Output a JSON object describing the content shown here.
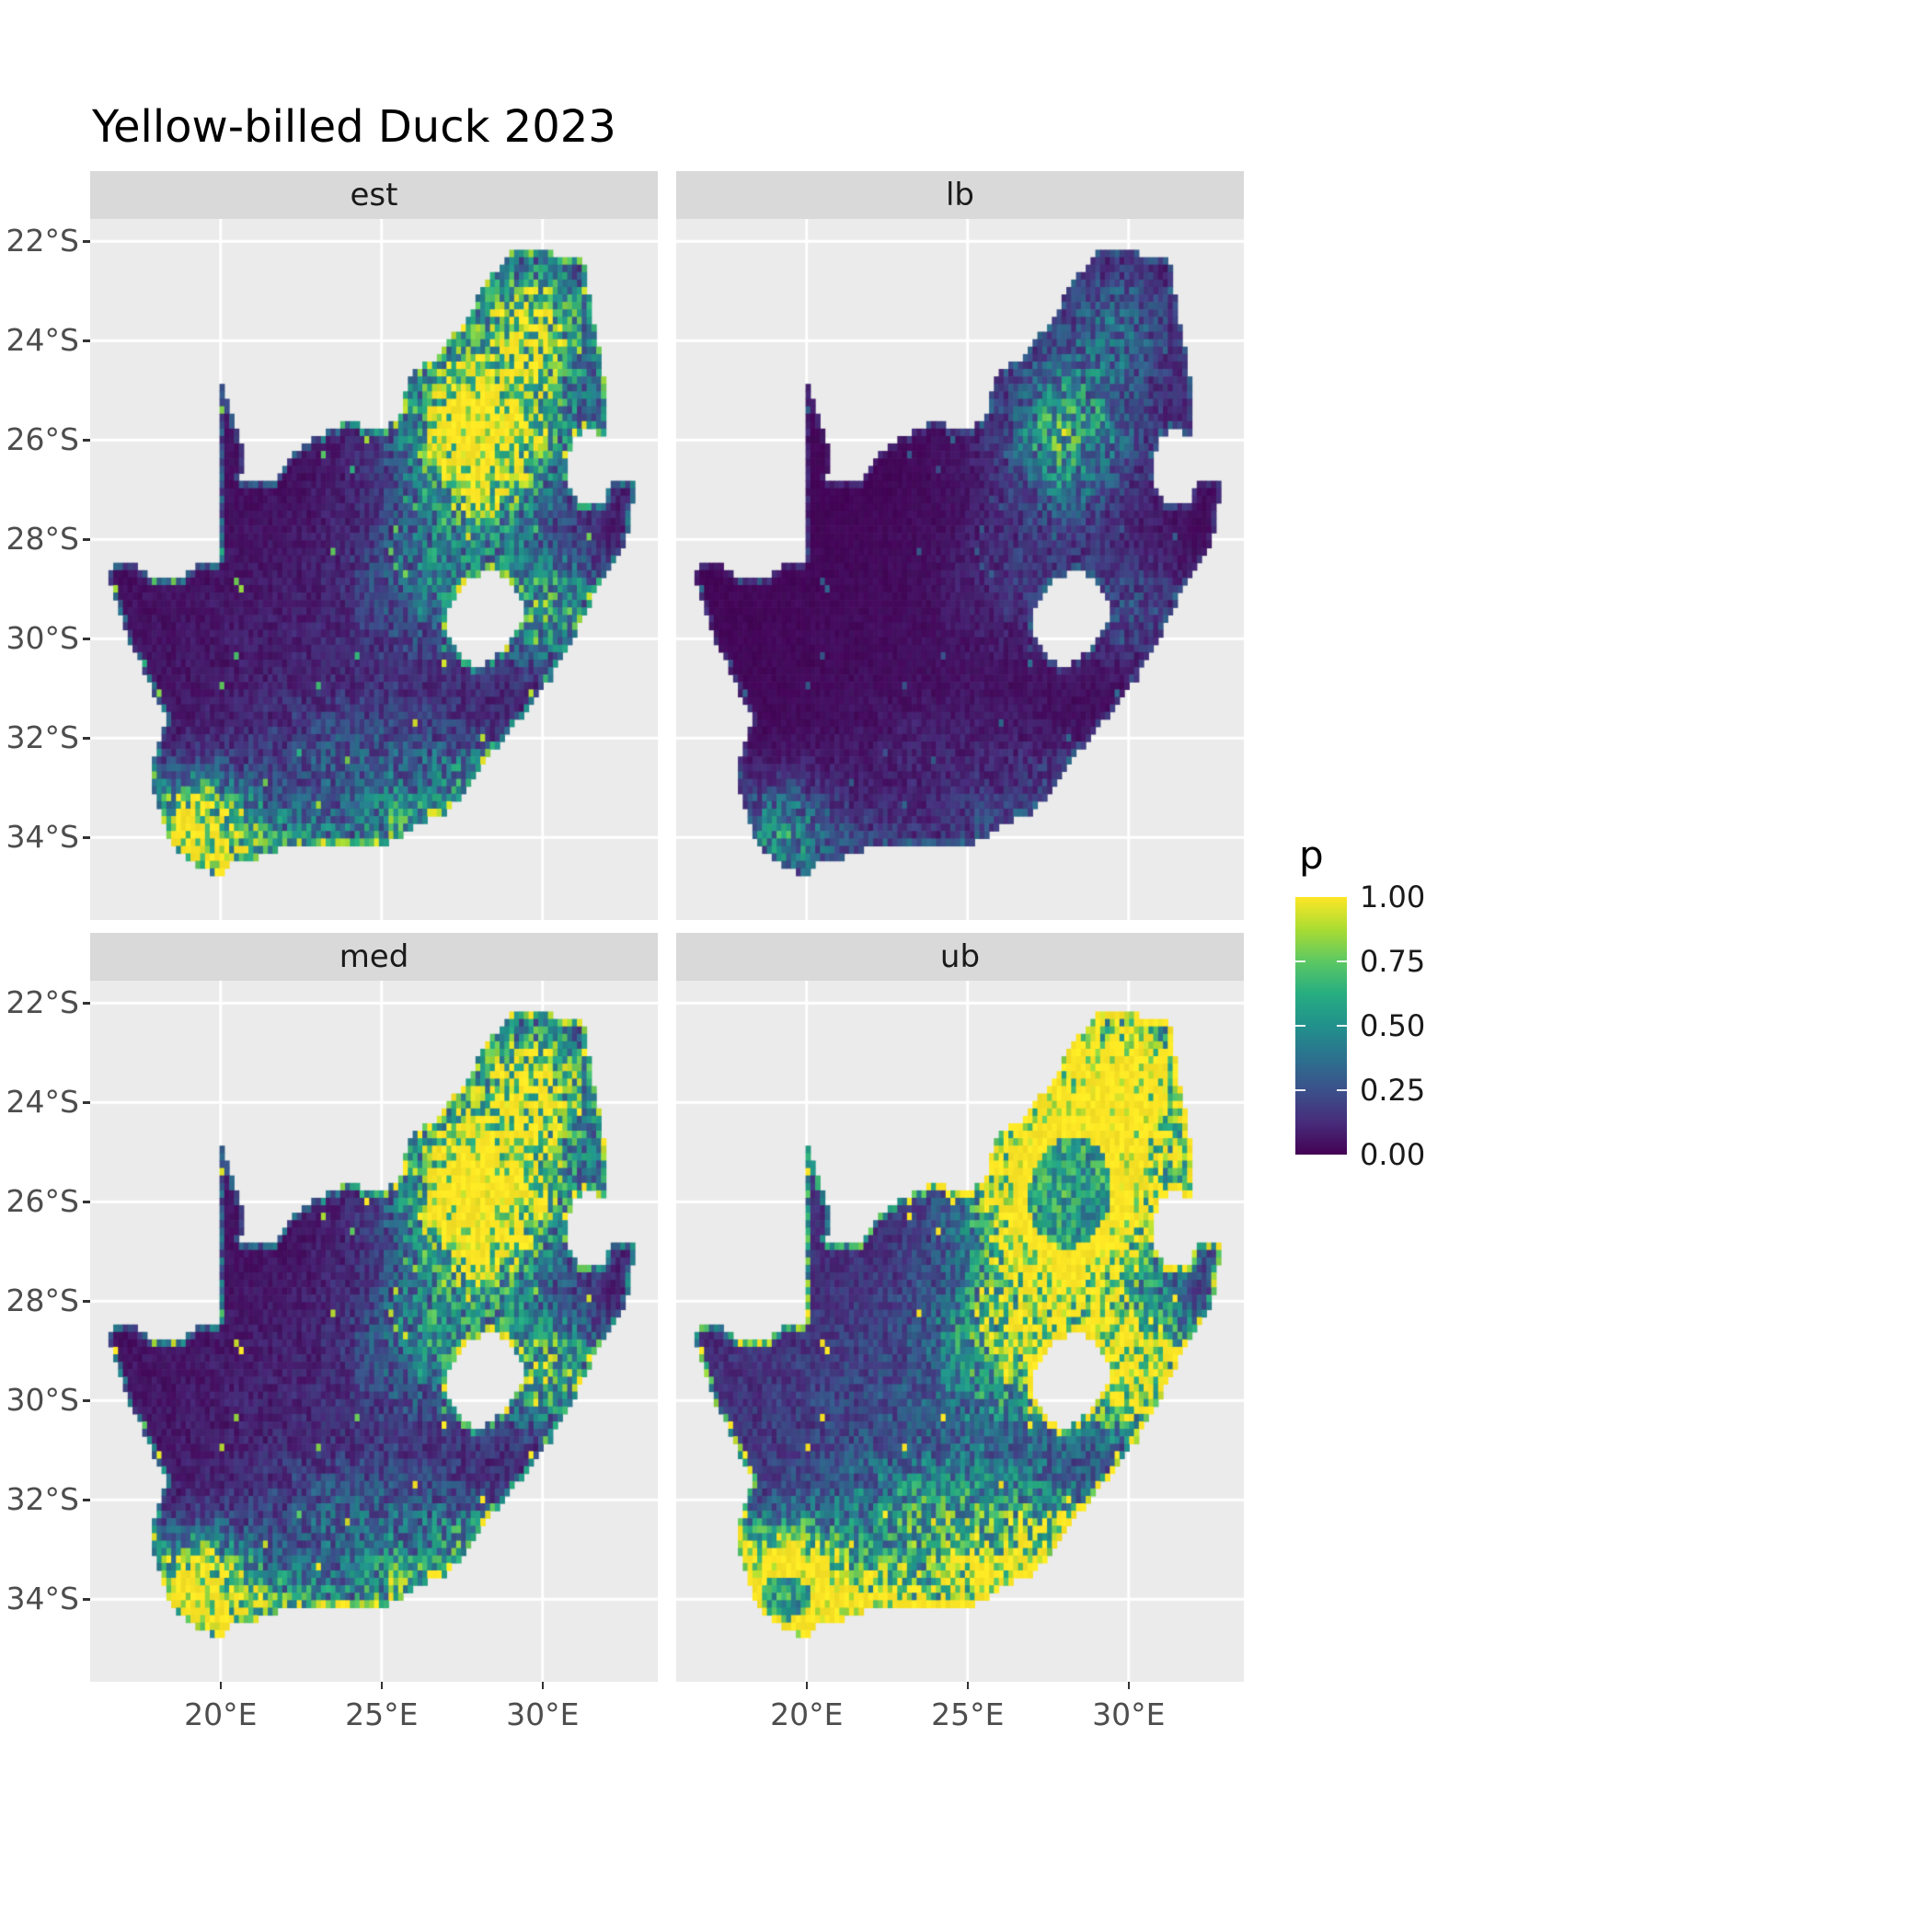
{
  "title": "Yellow-billed Duck 2023",
  "facets": [
    {
      "id": "est",
      "label": "est"
    },
    {
      "id": "lb",
      "label": "lb"
    },
    {
      "id": "med",
      "label": "med"
    },
    {
      "id": "ub",
      "label": "ub"
    }
  ],
  "axes": {
    "x": {
      "ticks": [
        "20°E",
        "25°E",
        "30°E"
      ],
      "values": [
        20,
        25,
        30
      ]
    },
    "y": {
      "ticks": [
        "22°S",
        "24°S",
        "26°S",
        "28°S",
        "30°S",
        "32°S",
        "34°S"
      ],
      "values": [
        -22,
        -24,
        -26,
        -28,
        -30,
        -32,
        -34
      ]
    }
  },
  "legend": {
    "title": "p",
    "ticks": [
      "1.00",
      "0.75",
      "0.50",
      "0.25",
      "0.00"
    ],
    "tick_values": [
      1.0,
      0.75,
      0.5,
      0.25,
      0.0
    ]
  },
  "colors": {
    "panel_bg": "#ebebeb",
    "strip_bg": "#d9d9d9",
    "grid": "#ffffff",
    "tick_text": "#4d4d4d",
    "title_text": "#000000"
  },
  "chart_data": {
    "type": "heatmap",
    "title": "Yellow-billed Duck 2023",
    "region": "South Africa",
    "facets": [
      "est",
      "lb",
      "med",
      "ub"
    ],
    "value_name": "p",
    "value_range": [
      0,
      1
    ],
    "legend_breaks": [
      0.0,
      0.25,
      0.5,
      0.75,
      1.0
    ],
    "palette": "viridis",
    "palette_stops": [
      "#440154",
      "#472c7a",
      "#3b518b",
      "#2c718e",
      "#21918c",
      "#27ad81",
      "#5cc863",
      "#aadc32",
      "#fde725"
    ],
    "x_range_deg": [
      15.95,
      33.58
    ],
    "y_range_deg": [
      -35.66,
      -21.55
    ],
    "cell_size_deg": 0.15,
    "base_p": 0.035,
    "hotspots": [
      [
        28.1,
        -26.0,
        1.15,
        0.95,
        1.05
      ],
      [
        28.6,
        -25.0,
        2.3,
        1.7,
        0.45
      ],
      [
        29.9,
        -23.5,
        1.2,
        0.85,
        0.42
      ],
      [
        30.2,
        -29.4,
        1.3,
        0.8,
        0.45
      ],
      [
        26.8,
        -28.8,
        1.6,
        1.0,
        0.28
      ],
      [
        19.2,
        -33.9,
        1.15,
        0.75,
        0.9
      ],
      [
        21.5,
        -34.2,
        2.2,
        0.55,
        0.35
      ],
      [
        25.6,
        -33.85,
        0.8,
        0.55,
        0.35
      ],
      [
        27.8,
        -32.95,
        0.95,
        0.6,
        0.3
      ],
      [
        24.5,
        -32.6,
        2.5,
        0.9,
        0.18
      ],
      [
        24.0,
        -30.8,
        4.0,
        2.2,
        0.05
      ]
    ],
    "facet_transform": {
      "est": {
        "scale": 1.0
      },
      "lb": {
        "scale": 0.38
      },
      "med": {
        "scale": 1.18
      },
      "ub": {
        "scale": 2.1,
        "offset": 0.04
      }
    },
    "map_polygon": [
      [
        16.45,
        -28.6
      ],
      [
        17.2,
        -28.4
      ],
      [
        17.9,
        -28.77
      ],
      [
        18.6,
        -28.85
      ],
      [
        19.3,
        -28.5
      ],
      [
        19.99,
        -28.42
      ],
      [
        19.99,
        -24.77
      ],
      [
        20.45,
        -25.6
      ],
      [
        20.7,
        -26.2
      ],
      [
        20.63,
        -26.82
      ],
      [
        21.6,
        -26.85
      ],
      [
        22.2,
        -26.35
      ],
      [
        22.9,
        -25.95
      ],
      [
        23.9,
        -25.62
      ],
      [
        24.8,
        -25.82
      ],
      [
        25.55,
        -25.6
      ],
      [
        25.9,
        -24.72
      ],
      [
        26.8,
        -24.28
      ],
      [
        27.6,
        -23.6
      ],
      [
        28.2,
        -22.9
      ],
      [
        29.05,
        -22.18
      ],
      [
        29.9,
        -22.2
      ],
      [
        31.1,
        -22.35
      ],
      [
        31.3,
        -22.42
      ],
      [
        31.55,
        -23.6
      ],
      [
        31.85,
        -24.4
      ],
      [
        31.97,
        -25.1
      ],
      [
        31.98,
        -25.95
      ],
      [
        31.35,
        -25.72
      ],
      [
        30.92,
        -26.0
      ],
      [
        30.78,
        -26.5
      ],
      [
        30.85,
        -26.9
      ],
      [
        31.1,
        -27.2
      ],
      [
        31.6,
        -27.32
      ],
      [
        31.96,
        -27.3
      ],
      [
        32.12,
        -26.85
      ],
      [
        32.89,
        -26.86
      ],
      [
        32.55,
        -28.2
      ],
      [
        31.75,
        -28.95
      ],
      [
        31.05,
        -29.87
      ],
      [
        30.25,
        -30.8
      ],
      [
        29.35,
        -31.55
      ],
      [
        28.45,
        -32.3
      ],
      [
        27.65,
        -33.05
      ],
      [
        26.9,
        -33.55
      ],
      [
        26.0,
        -33.75
      ],
      [
        25.65,
        -34.0
      ],
      [
        24.9,
        -34.2
      ],
      [
        24.0,
        -34.1
      ],
      [
        23.0,
        -34.1
      ],
      [
        22.2,
        -34.15
      ],
      [
        21.2,
        -34.4
      ],
      [
        20.3,
        -34.5
      ],
      [
        19.95,
        -34.8
      ],
      [
        19.4,
        -34.62
      ],
      [
        18.9,
        -34.37
      ],
      [
        18.45,
        -34.2
      ],
      [
        18.3,
        -33.85
      ],
      [
        17.95,
        -33.1
      ],
      [
        17.85,
        -32.55
      ],
      [
        18.35,
        -31.65
      ],
      [
        17.65,
        -30.7
      ],
      [
        17.05,
        -29.85
      ],
      [
        16.75,
        -29.2
      ]
    ],
    "lesotho_hole": [
      [
        27.0,
        -29.55
      ],
      [
        27.35,
        -29.05
      ],
      [
        27.85,
        -28.75
      ],
      [
        28.4,
        -28.6
      ],
      [
        28.95,
        -28.8
      ],
      [
        29.35,
        -29.15
      ],
      [
        29.45,
        -29.55
      ],
      [
        29.1,
        -29.95
      ],
      [
        28.55,
        -30.35
      ],
      [
        28.0,
        -30.65
      ],
      [
        27.45,
        -30.35
      ],
      [
        27.05,
        -29.95
      ]
    ]
  }
}
